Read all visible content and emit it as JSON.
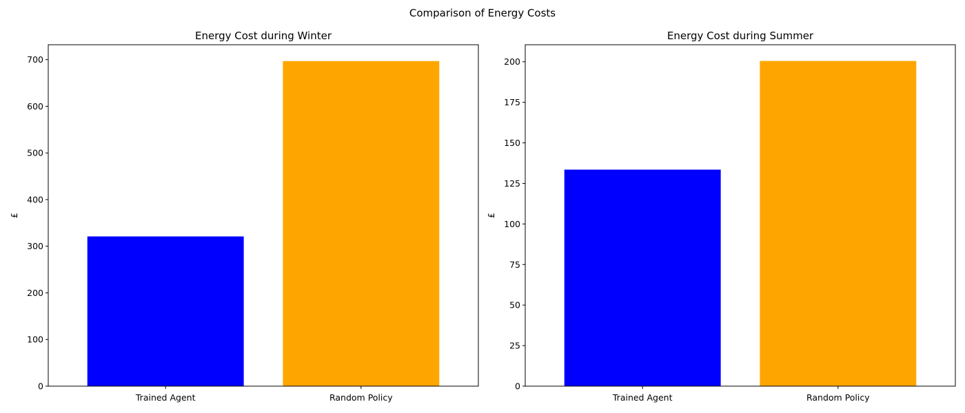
{
  "figure": {
    "title": "Comparison of Energy Costs"
  },
  "chart_data": [
    {
      "type": "bar",
      "title": "Energy Cost during Winter",
      "xlabel": "",
      "ylabel": "£",
      "categories": [
        "Trained Agent",
        "Random Policy"
      ],
      "values": [
        321,
        697
      ],
      "colors": [
        "#0000ff",
        "#ffa500"
      ],
      "ylim": [
        0,
        732
      ],
      "yticks": [
        0,
        100,
        200,
        300,
        400,
        500,
        600,
        700
      ],
      "grid": false,
      "legend": "none"
    },
    {
      "type": "bar",
      "title": "Energy Cost during Summer",
      "xlabel": "",
      "ylabel": "£",
      "categories": [
        "Trained Agent",
        "Random Policy"
      ],
      "values": [
        133.5,
        200.5
      ],
      "colors": [
        "#0000ff",
        "#ffa500"
      ],
      "ylim": [
        0,
        210.5
      ],
      "yticks": [
        0,
        25,
        50,
        75,
        100,
        125,
        150,
        175,
        200
      ],
      "grid": false,
      "legend": "none"
    }
  ]
}
